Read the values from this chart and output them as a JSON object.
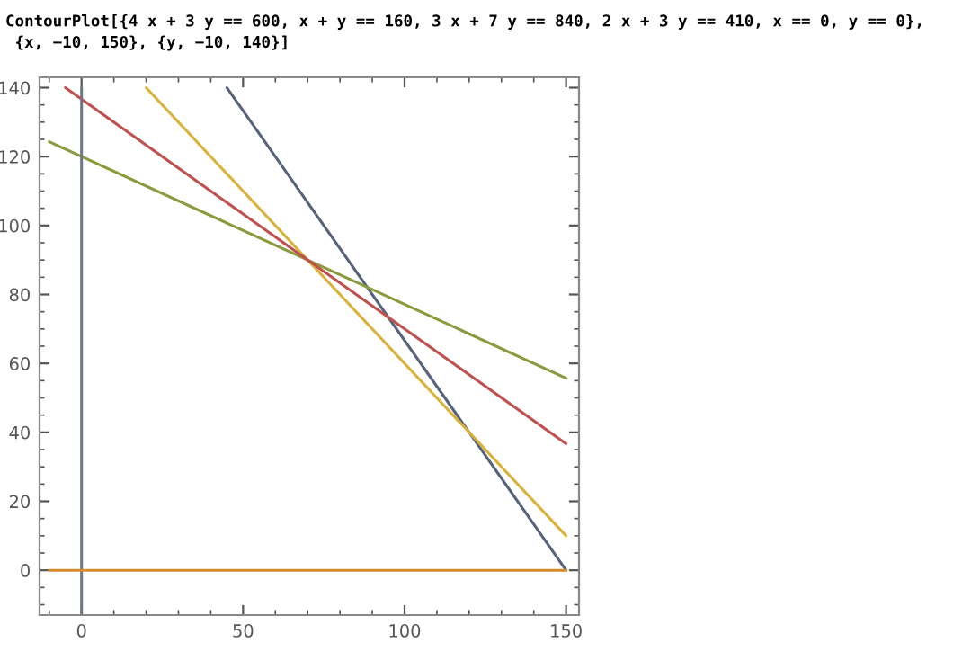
{
  "chart_data": {
    "type": "line",
    "title": "ContourPlot[{4 x + 3 y == 600, x + y == 160, 3 x + 7 y == 840, 2 x + 3 y == 410, x == 0, y == 0},\n {x, −10, 150}, {y, −10, 140}]",
    "series": [
      {
        "x": [
          45,
          150
        ],
        "values": [
          140,
          0
        ],
        "color": "#56637a"
      },
      {
        "x": [
          20,
          150
        ],
        "values": [
          140,
          10
        ],
        "color": "#d9b23c"
      },
      {
        "x": [
          -10,
          150
        ],
        "values": [
          124.3,
          55.7
        ],
        "color": "#8a9a3c"
      },
      {
        "x": [
          -5,
          150
        ],
        "values": [
          140,
          36.7
        ],
        "color": "#c0504d"
      },
      {
        "x": [
          0,
          0
        ],
        "values": [
          -13,
          140
        ],
        "color": "#6e7785"
      },
      {
        "x": [
          -10,
          150
        ],
        "values": [
          0,
          0
        ],
        "color": "#d68a2e"
      }
    ],
    "xlim": [
      -13,
      154
    ],
    "ylim": [
      -13,
      143
    ],
    "xticks": [
      0,
      50,
      100,
      150
    ],
    "yticks": [
      0,
      20,
      40,
      60,
      80,
      100,
      120,
      140
    ],
    "grid": false,
    "legend": false,
    "marker": "none",
    "line_style": "solid"
  }
}
